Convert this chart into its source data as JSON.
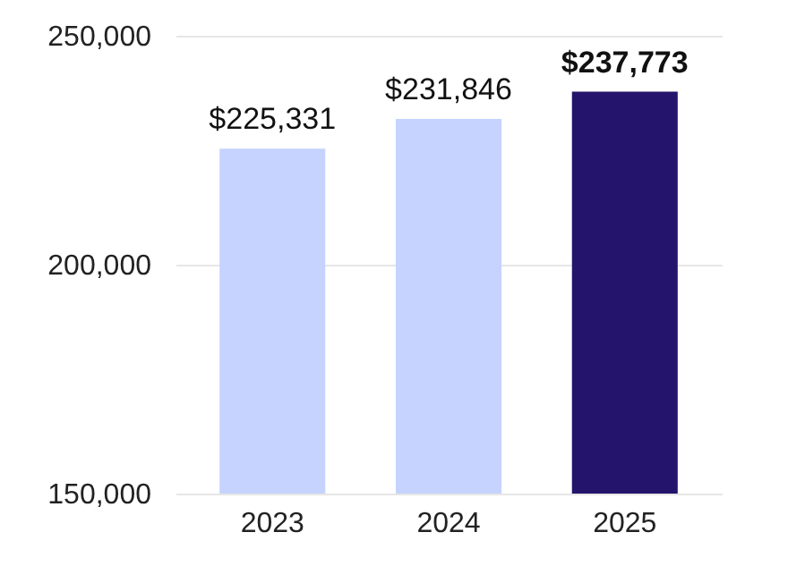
{
  "chart_data": {
    "type": "bar",
    "categories": [
      "2023",
      "2024",
      "2025"
    ],
    "values": [
      225331,
      231846,
      237773
    ],
    "colors": [
      "#c5d3fe",
      "#c5d3fe",
      "#24146b"
    ],
    "value_labels": [
      "$225,331",
      "$231,846",
      "$237,773"
    ],
    "ylim": [
      150000,
      250000
    ],
    "yticks": [
      {
        "value": 150000,
        "label": "150,000"
      },
      {
        "value": 200000,
        "label": "200,000"
      },
      {
        "value": 250000,
        "label": "250,000"
      }
    ],
    "grid": "y"
  }
}
